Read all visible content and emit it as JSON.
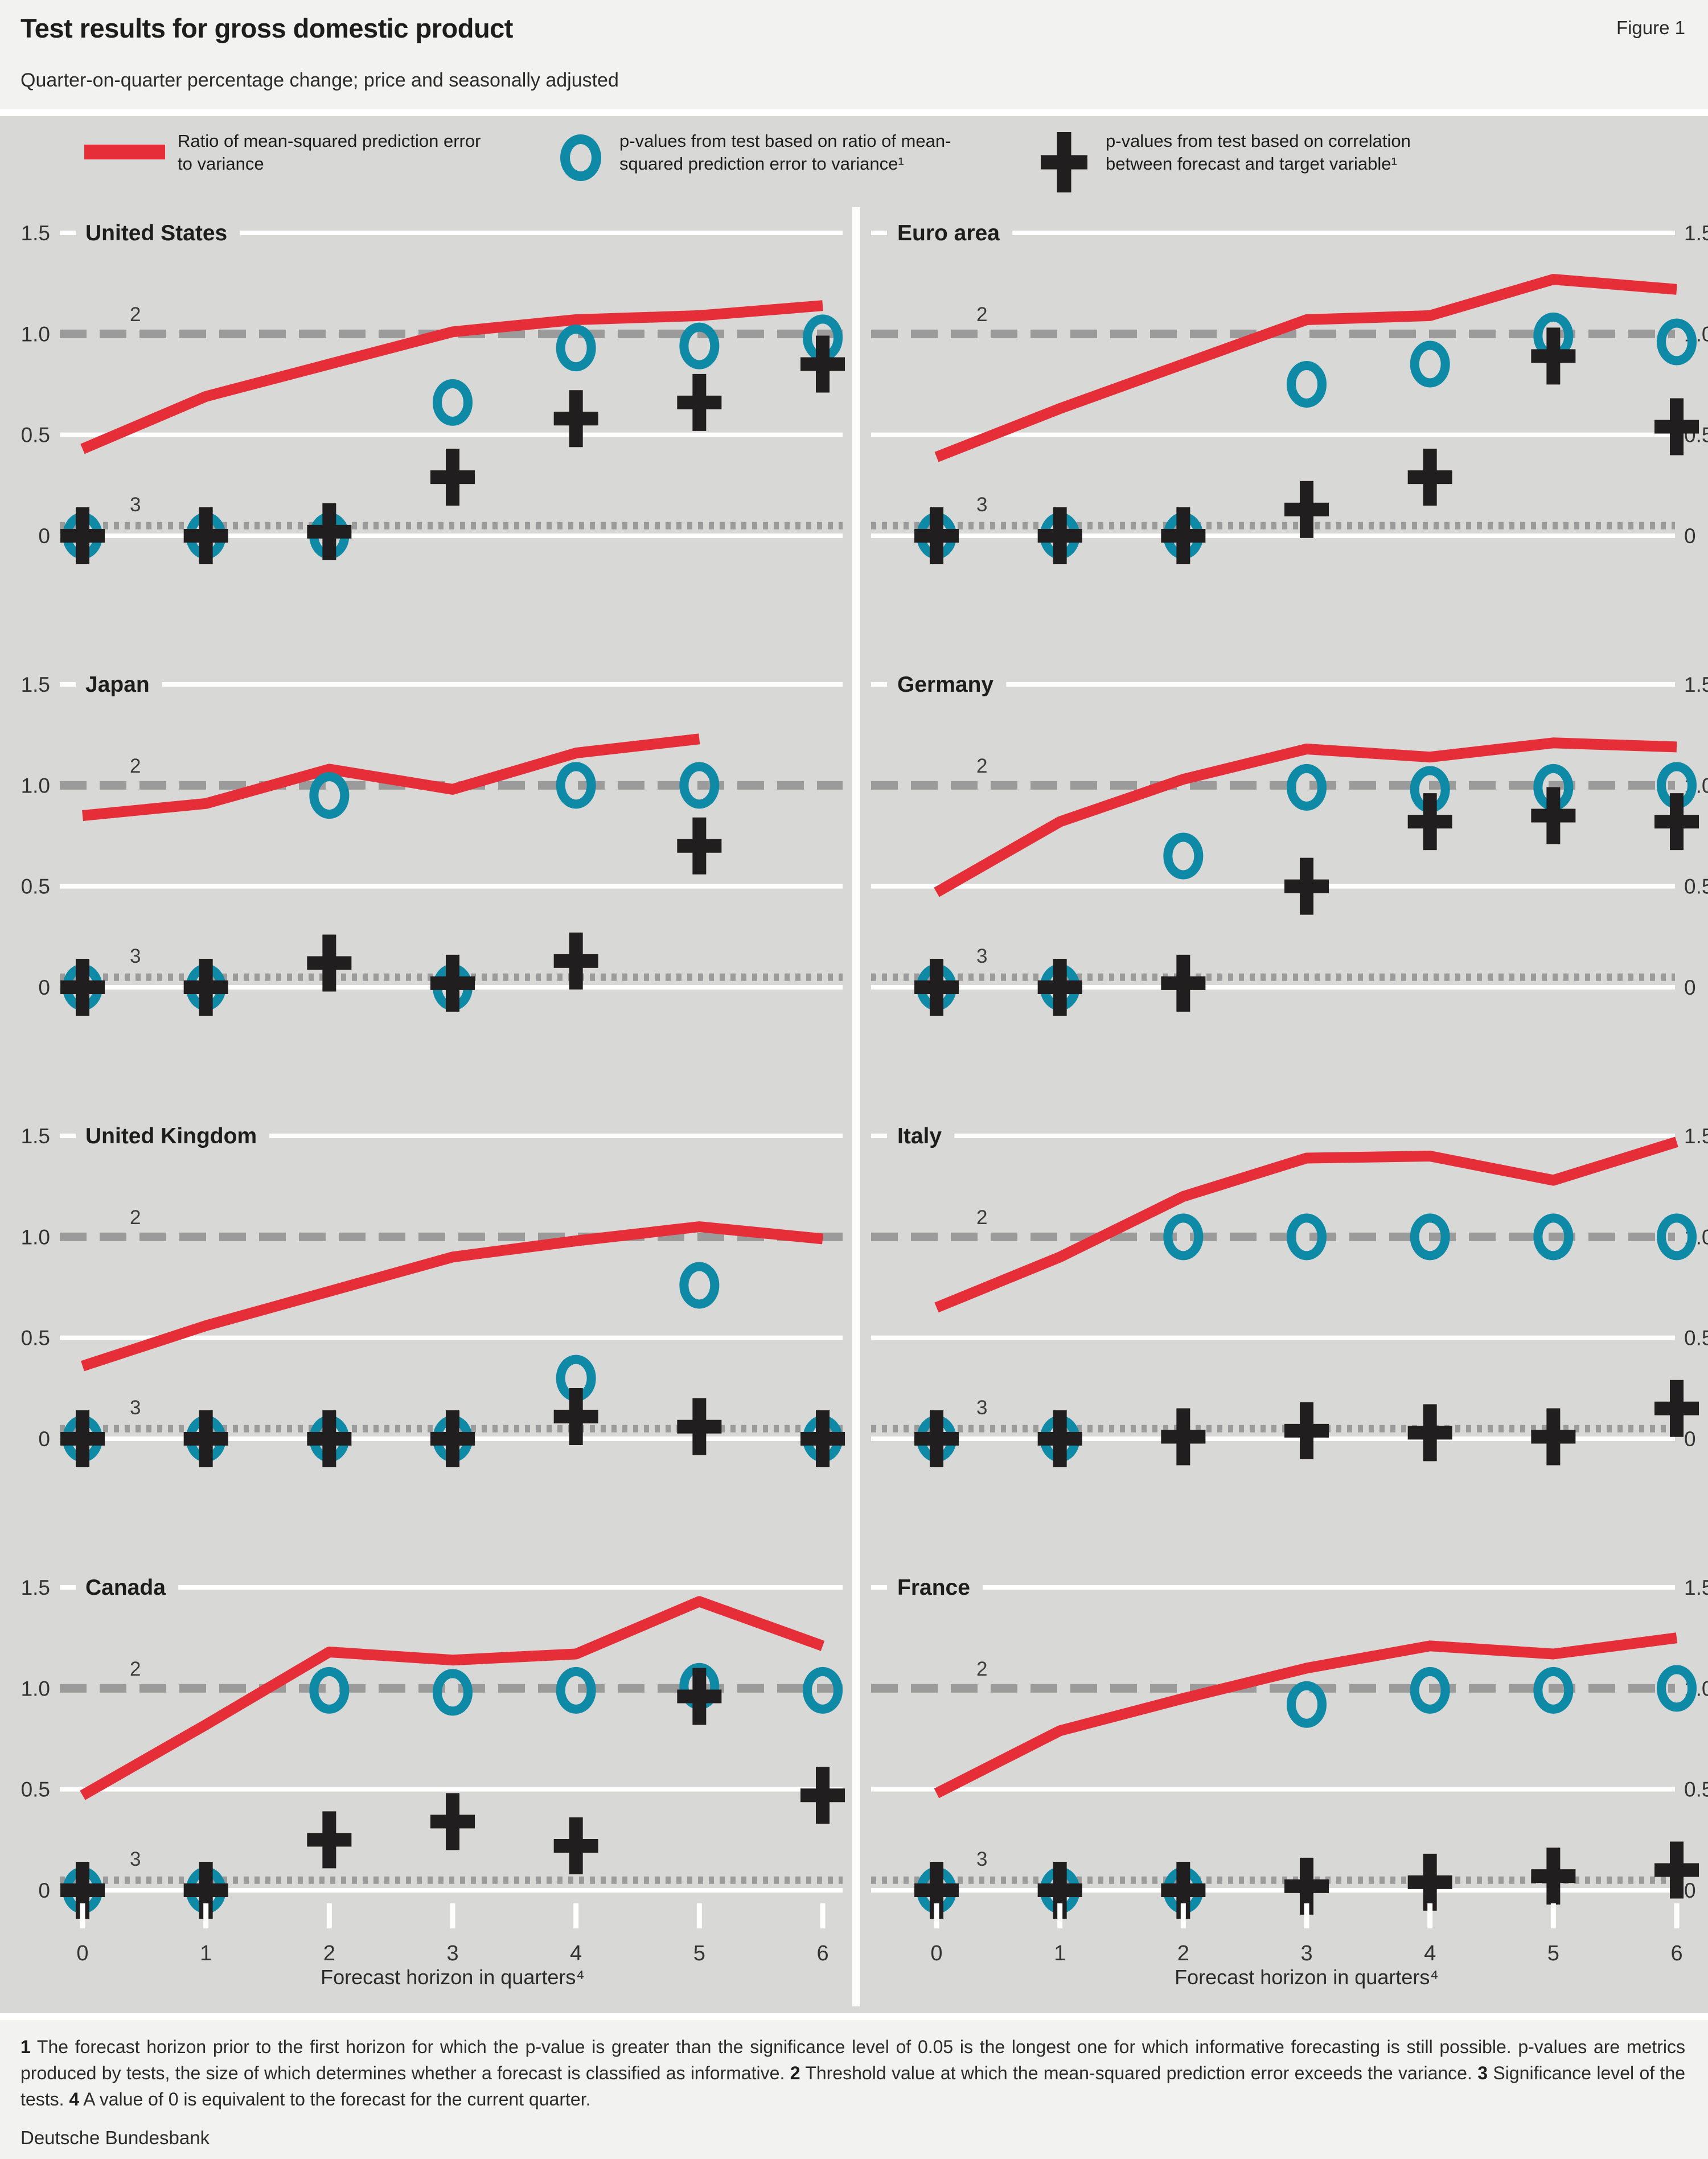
{
  "header": {
    "title": "Test results for gross domestic product",
    "figure_label": "Figure 1",
    "subtitle": "Quarter-on-quarter percentage change; price and seasonally adjusted"
  },
  "legend": {
    "items": [
      {
        "marker": "red-line",
        "label": "Ratio of mean-squared prediction error to variance"
      },
      {
        "marker": "teal-circle",
        "label": "p-values from test based on ratio of mean-squared prediction error to variance¹"
      },
      {
        "marker": "black-cross",
        "label": "p-values from test based on correlation between forecast and target variable¹"
      }
    ]
  },
  "axis": {
    "yticks": [
      "1.5",
      "1.0",
      "0.5",
      "0"
    ],
    "ytick_values": [
      1.5,
      1.0,
      0.5,
      0
    ],
    "xticks": [
      "0",
      "1",
      "2",
      "3",
      "4",
      "5",
      "6"
    ],
    "xlabel": "Forecast horizon in quarters⁴",
    "threshold_label": "2",
    "significance_label": "3"
  },
  "chart_data": {
    "type": "line",
    "x": [
      0,
      1,
      2,
      3,
      4,
      5,
      6
    ],
    "ylim": [
      0,
      1.5
    ],
    "grid_values": [
      0,
      0.5,
      1.5
    ],
    "threshold_y": 1.0,
    "significance_y": 0.05,
    "series_names": {
      "red": "Ratio of mean-squared prediction error to variance",
      "circle": "p-values from test based on ratio of mean-squared prediction error to variance",
      "plus": "p-values from test based on correlation between forecast and target variable"
    },
    "panels": [
      {
        "name": "United States",
        "red": [
          0.43,
          0.69,
          0.85,
          1.01,
          1.07,
          1.09,
          1.14
        ],
        "circle": [
          0,
          0,
          0,
          0.66,
          0.93,
          0.94,
          0.98
        ],
        "plus": [
          0,
          0,
          0.02,
          0.29,
          0.58,
          0.66,
          0.85
        ]
      },
      {
        "name": "Euro area",
        "red": [
          0.39,
          0.63,
          0.85,
          1.07,
          1.09,
          1.27,
          1.22
        ],
        "circle": [
          0,
          0,
          0,
          0.75,
          0.85,
          0.99,
          0.96
        ],
        "plus": [
          0,
          0,
          0,
          0.13,
          0.29,
          0.89,
          0.54
        ]
      },
      {
        "name": "Japan",
        "red": [
          0.85,
          0.91,
          1.08,
          0.98,
          1.16,
          1.23,
          null
        ],
        "circle": [
          0,
          0,
          0.95,
          0,
          1.0,
          1.0,
          null
        ],
        "plus": [
          0,
          0,
          0.12,
          0.02,
          0.13,
          0.7,
          null
        ]
      },
      {
        "name": "Germany",
        "red": [
          0.47,
          0.82,
          1.03,
          1.18,
          1.14,
          1.21,
          1.19
        ],
        "circle": [
          0,
          0,
          0.65,
          0.99,
          0.98,
          0.99,
          1.0
        ],
        "plus": [
          0,
          0,
          0.02,
          0.5,
          0.82,
          0.85,
          0.82
        ]
      },
      {
        "name": "United Kingdom",
        "red": [
          0.36,
          0.56,
          0.73,
          0.9,
          0.98,
          1.05,
          0.99
        ],
        "circle": [
          0,
          0,
          0,
          0,
          0.3,
          0.76,
          0
        ],
        "plus": [
          0,
          0,
          0,
          0,
          0.11,
          0.06,
          0
        ]
      },
      {
        "name": "Italy",
        "red": [
          0.65,
          0.9,
          1.2,
          1.39,
          1.4,
          1.28,
          1.47
        ],
        "circle": [
          0,
          0,
          1.0,
          1.0,
          1.0,
          1.0,
          1.0
        ],
        "plus": [
          0,
          0,
          0.01,
          0.04,
          0.03,
          0.01,
          0.15
        ]
      },
      {
        "name": "Canada",
        "red": [
          0.47,
          0.82,
          1.18,
          1.14,
          1.17,
          1.43,
          1.21
        ],
        "circle": [
          0,
          0,
          0.99,
          0.98,
          0.99,
          1.01,
          0.99
        ],
        "plus": [
          0,
          0,
          0.25,
          0.34,
          0.22,
          0.96,
          0.47
        ]
      },
      {
        "name": "France",
        "red": [
          0.48,
          0.79,
          0.95,
          1.1,
          1.21,
          1.17,
          1.25
        ],
        "circle": [
          0,
          0,
          0,
          0.92,
          0.99,
          0.99,
          1.0
        ],
        "plus": [
          0,
          0,
          0,
          0.02,
          0.04,
          0.07,
          0.1
        ]
      }
    ]
  },
  "footnote": {
    "parts": [
      {
        "label": "1",
        "text": "The forecast horizon prior to the first horizon for which the p-value is greater than the significance level of 0.05 is the longest one for which informative forecasting is still possible. p-values are metrics produced by tests, the size of which determines whether a forecast is classified as informative. "
      },
      {
        "label": "2",
        "text": "Threshold value at which the mean-squared prediction error exceeds the variance. "
      },
      {
        "label": "3",
        "text": "Significance level of the tests. "
      },
      {
        "label": "4",
        "text": "A value of 0 is equivalent to the forecast for the current quarter."
      }
    ]
  },
  "source": "Deutsche Bundesbank",
  "colors": {
    "red_line": "#e62e39",
    "teal_circle": "#0e8aa6",
    "black_cross": "#211e1f",
    "gray_dash": "#9c9b9b",
    "chart_background": "#d8d8d7",
    "page_background": "#f2f2f0",
    "gridline": "#ffffff",
    "text": "#1d1d1b"
  }
}
